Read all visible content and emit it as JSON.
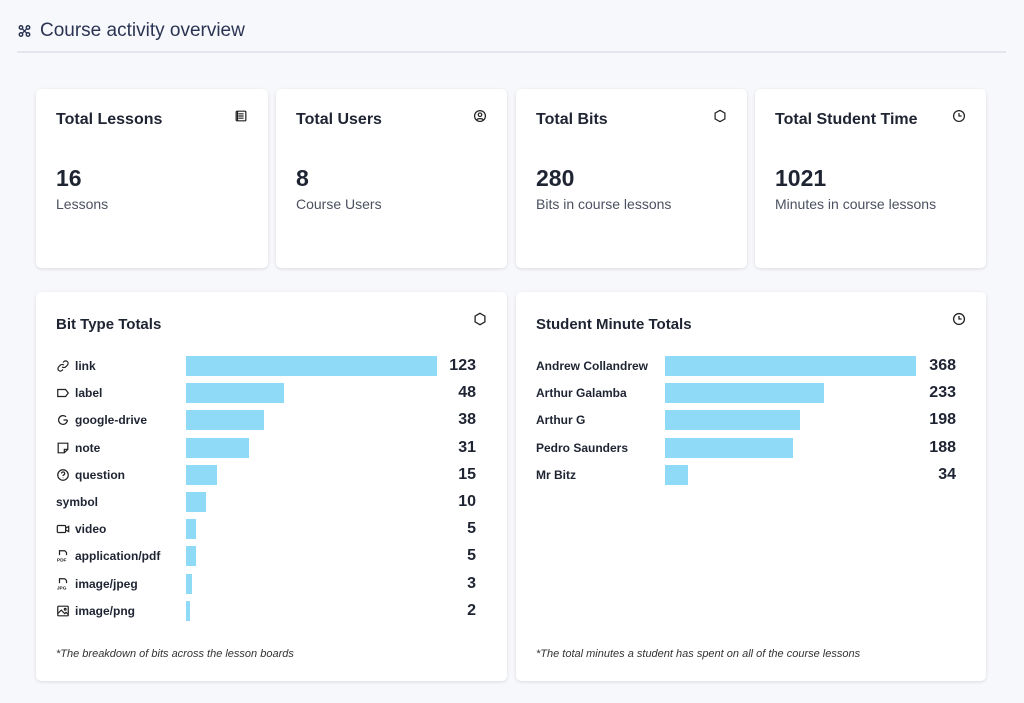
{
  "header": {
    "title": "Course activity overview",
    "icon": "command-icon"
  },
  "stats": [
    {
      "title": "Total Lessons",
      "value": "16",
      "sub": "Lessons",
      "icon": "lessons-icon"
    },
    {
      "title": "Total Users",
      "value": "8",
      "sub": "Course Users",
      "icon": "user-circle-icon"
    },
    {
      "title": "Total Bits",
      "value": "280",
      "sub": "Bits in course lessons",
      "icon": "hexagon-icon"
    },
    {
      "title": "Total Student Time",
      "value": "1021",
      "sub": "Minutes in course lessons",
      "icon": "clock-icon"
    }
  ],
  "bits": {
    "title": "Bit Type Totals",
    "footnote": "*The breakdown of bits across the lesson boards",
    "bar_color": "#8fdaf7",
    "max": 123,
    "rows": [
      {
        "label": "link",
        "value": 123,
        "icon": "link-icon"
      },
      {
        "label": "label",
        "value": 48,
        "icon": "tag-icon"
      },
      {
        "label": "google-drive",
        "value": 38,
        "icon": "google-icon"
      },
      {
        "label": "note",
        "value": 31,
        "icon": "note-icon"
      },
      {
        "label": "question",
        "value": 15,
        "icon": "question-icon"
      },
      {
        "label": "symbol",
        "value": 10,
        "icon": ""
      },
      {
        "label": "video",
        "value": 5,
        "icon": "video-icon"
      },
      {
        "label": "application/pdf",
        "value": 5,
        "icon": "pdf-icon"
      },
      {
        "label": "image/jpeg",
        "value": 3,
        "icon": "jpg-icon"
      },
      {
        "label": "image/png",
        "value": 2,
        "icon": "image-icon"
      }
    ]
  },
  "minutes": {
    "title": "Student Minute Totals",
    "footnote": "*The total minutes a student has spent on all of the course lessons",
    "max": 368,
    "rows": [
      {
        "label": "Andrew Collandrew",
        "value": 368
      },
      {
        "label": "Arthur Galamba",
        "value": 233
      },
      {
        "label": "Arthur G",
        "value": 198
      },
      {
        "label": "Pedro Saunders",
        "value": 188
      },
      {
        "label": "Mr Bitz",
        "value": 34
      }
    ]
  }
}
